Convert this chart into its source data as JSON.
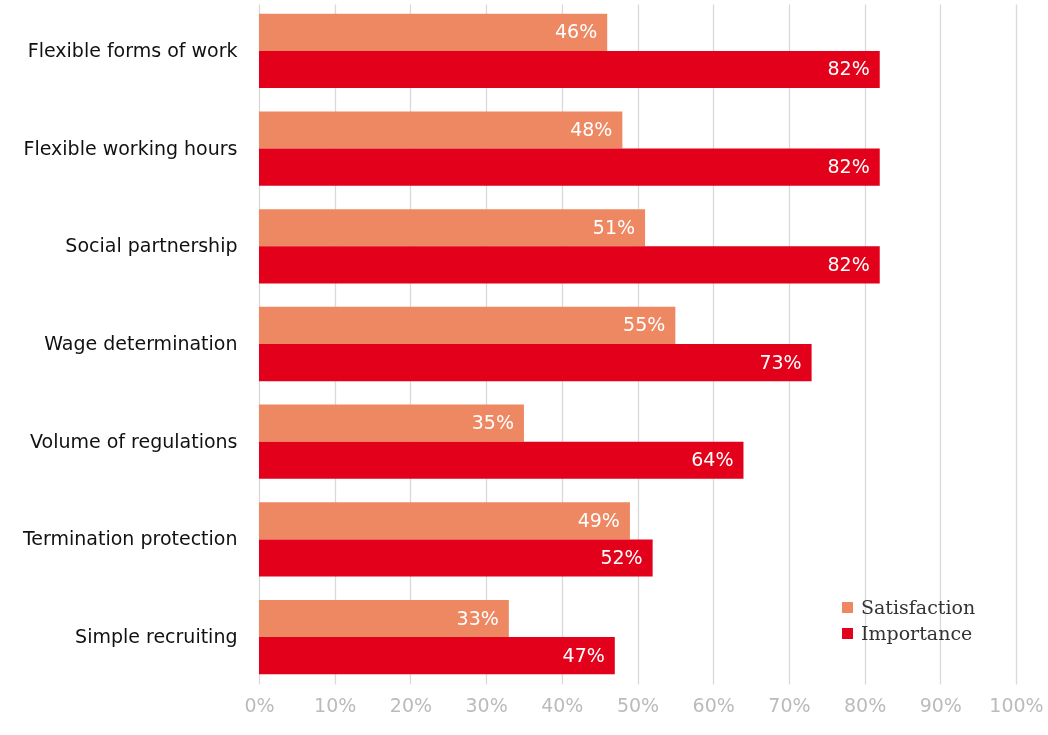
{
  "chart_data": {
    "type": "bar",
    "orientation": "horizontal",
    "categories": [
      "Flexible forms of work",
      "Flexible working hours",
      "Social partnership",
      "Wage determination",
      "Volume of regulations",
      "Termination protection",
      "Simple recruiting"
    ],
    "series": [
      {
        "name": "Satisfaction",
        "color": "#ee8862",
        "values": [
          46,
          48,
          51,
          55,
          35,
          49,
          33
        ],
        "value_labels": [
          "46%",
          "48%",
          "51%",
          "55%",
          "35%",
          "49%",
          "33%"
        ]
      },
      {
        "name": "Importance",
        "color": "#e2001a",
        "values": [
          82,
          82,
          82,
          73,
          64,
          52,
          47
        ],
        "value_labels": [
          "82%",
          "82%",
          "82%",
          "73%",
          "64%",
          "52%",
          "47%"
        ]
      }
    ],
    "xlim": [
      0,
      100
    ],
    "xticks": [
      {
        "value": 0,
        "label": "0%"
      },
      {
        "value": 10,
        "label": "10%"
      },
      {
        "value": 20,
        "label": "20%"
      },
      {
        "value": 30,
        "label": "30%"
      },
      {
        "value": 40,
        "label": "40%"
      },
      {
        "value": 50,
        "label": "50%"
      },
      {
        "value": 60,
        "label": "60%"
      },
      {
        "value": 70,
        "label": "70%"
      },
      {
        "value": 80,
        "label": "80%"
      },
      {
        "value": 90,
        "label": "90%"
      },
      {
        "value": 100,
        "label": "100%"
      }
    ],
    "grid": "x",
    "legend": "bottom right"
  }
}
